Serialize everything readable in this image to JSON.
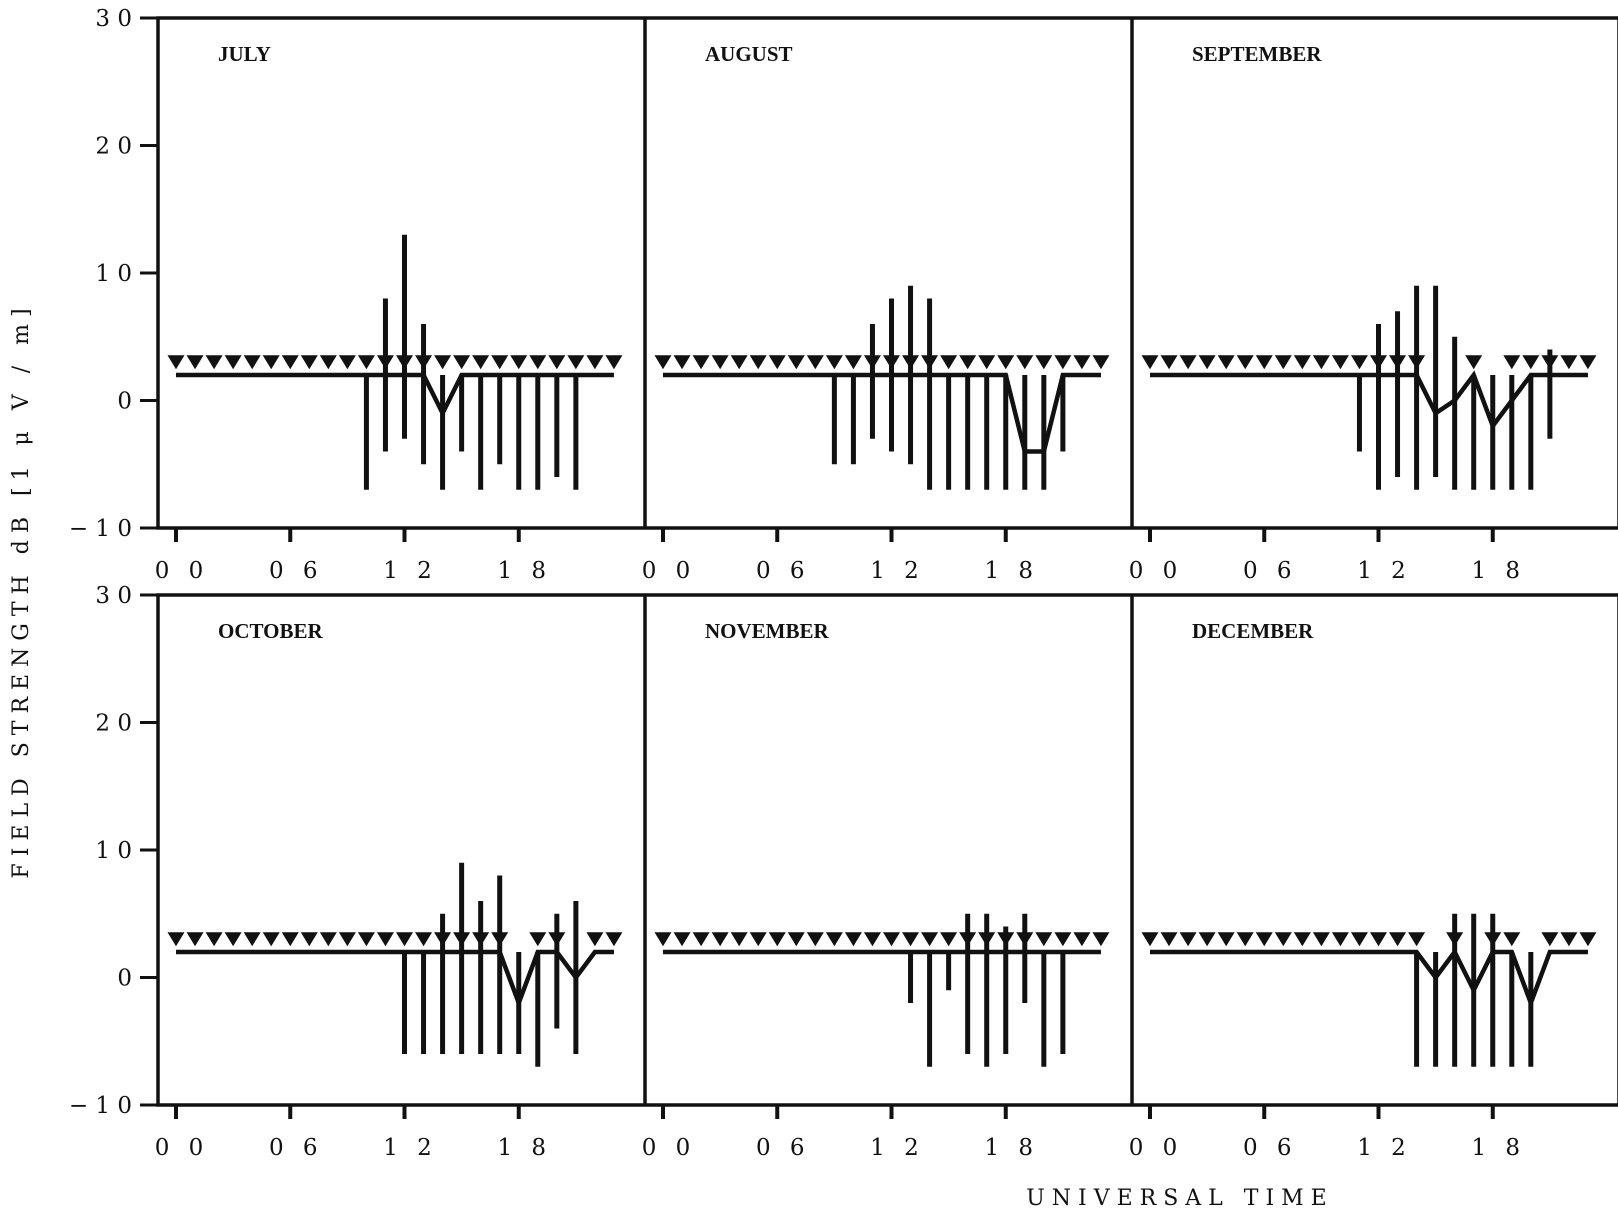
{
  "chart_data": {
    "type": "line",
    "layout": "2x3 small multiples",
    "ylabel": "FIELD STRENGTH  dB  [1 μ V / m]",
    "xlabel": "UNIVERSAL  TIME",
    "ylim": [
      -10,
      30
    ],
    "y_ticks": [
      -10,
      0,
      10,
      20,
      30
    ],
    "y_tick_labels": [
      "− 1 0",
      "0",
      "1 0",
      "2 0",
      "3 0"
    ],
    "x_range": [
      0,
      24
    ],
    "x_ticks": [
      0,
      6,
      12,
      18
    ],
    "x_tick_labels": [
      "0 0",
      "0 6",
      "1 2",
      "1 8"
    ],
    "legend": "none",
    "grid": false,
    "marker_note": "inverted triangles mark hours with no signal",
    "panels": [
      {
        "title": "JULY",
        "x": [
          0,
          1,
          2,
          3,
          4,
          5,
          6,
          7,
          8,
          9,
          10,
          11,
          12,
          13,
          14,
          15,
          16,
          17,
          18,
          19,
          20,
          21,
          22,
          23
        ],
        "median": [
          2,
          2,
          2,
          2,
          2,
          2,
          2,
          2,
          2,
          2,
          2,
          2,
          2,
          2,
          -1,
          2,
          2,
          2,
          2,
          2,
          2,
          2,
          2,
          2
        ],
        "no_signal": [
          true,
          true,
          true,
          true,
          true,
          true,
          true,
          true,
          true,
          true,
          true,
          true,
          true,
          true,
          true,
          true,
          true,
          true,
          true,
          true,
          true,
          true,
          true,
          true
        ],
        "bars": [
          {
            "x": 10,
            "low": -7,
            "high": 2
          },
          {
            "x": 11,
            "low": -4,
            "high": 8
          },
          {
            "x": 12,
            "low": -3,
            "high": 13
          },
          {
            "x": 13,
            "low": -5,
            "high": 6
          },
          {
            "x": 14,
            "low": -7,
            "high": 2
          },
          {
            "x": 15,
            "low": -4,
            "high": 2
          },
          {
            "x": 16,
            "low": -7,
            "high": 2
          },
          {
            "x": 17,
            "low": -5,
            "high": 2
          },
          {
            "x": 18,
            "low": -7,
            "high": 2
          },
          {
            "x": 19,
            "low": -7,
            "high": 2
          },
          {
            "x": 20,
            "low": -6,
            "high": 2
          },
          {
            "x": 21,
            "low": -7,
            "high": 2
          }
        ]
      },
      {
        "title": "AUGUST",
        "x": [
          0,
          1,
          2,
          3,
          4,
          5,
          6,
          7,
          8,
          9,
          10,
          11,
          12,
          13,
          14,
          15,
          16,
          17,
          18,
          19,
          20,
          21,
          22,
          23
        ],
        "median": [
          2,
          2,
          2,
          2,
          2,
          2,
          2,
          2,
          2,
          2,
          2,
          2,
          2,
          2,
          2,
          2,
          2,
          2,
          2,
          -4,
          -4,
          2,
          2,
          2
        ],
        "no_signal": [
          true,
          true,
          true,
          true,
          true,
          true,
          true,
          true,
          true,
          true,
          true,
          true,
          true,
          true,
          true,
          true,
          true,
          true,
          true,
          true,
          true,
          true,
          true,
          true
        ],
        "bars": [
          {
            "x": 9,
            "low": -5,
            "high": 2
          },
          {
            "x": 10,
            "low": -5,
            "high": 2
          },
          {
            "x": 11,
            "low": -3,
            "high": 6
          },
          {
            "x": 12,
            "low": -4,
            "high": 8
          },
          {
            "x": 13,
            "low": -5,
            "high": 9
          },
          {
            "x": 14,
            "low": -7,
            "high": 8
          },
          {
            "x": 15,
            "low": -7,
            "high": 2
          },
          {
            "x": 16,
            "low": -7,
            "high": 2
          },
          {
            "x": 17,
            "low": -7,
            "high": 2
          },
          {
            "x": 18,
            "low": -7,
            "high": 2
          },
          {
            "x": 19,
            "low": -7,
            "high": 2
          },
          {
            "x": 20,
            "low": -7,
            "high": 2
          },
          {
            "x": 21,
            "low": -4,
            "high": 2
          }
        ]
      },
      {
        "title": "SEPTEMBER",
        "x": [
          0,
          1,
          2,
          3,
          4,
          5,
          6,
          7,
          8,
          9,
          10,
          11,
          12,
          13,
          14,
          15,
          16,
          17,
          18,
          19,
          20,
          21,
          22,
          23
        ],
        "median": [
          2,
          2,
          2,
          2,
          2,
          2,
          2,
          2,
          2,
          2,
          2,
          2,
          2,
          2,
          2,
          -1,
          0,
          2,
          -2,
          0,
          2,
          2,
          2,
          2
        ],
        "no_signal": [
          true,
          true,
          true,
          true,
          true,
          true,
          true,
          true,
          true,
          true,
          true,
          true,
          true,
          true,
          true,
          false,
          false,
          true,
          false,
          true,
          true,
          true,
          true,
          true
        ],
        "bars": [
          {
            "x": 11,
            "low": -4,
            "high": 2
          },
          {
            "x": 12,
            "low": -7,
            "high": 6
          },
          {
            "x": 13,
            "low": -6,
            "high": 7
          },
          {
            "x": 14,
            "low": -7,
            "high": 9
          },
          {
            "x": 15,
            "low": -6,
            "high": 9
          },
          {
            "x": 16,
            "low": -7,
            "high": 5
          },
          {
            "x": 17,
            "low": -7,
            "high": 2
          },
          {
            "x": 18,
            "low": -7,
            "high": 2
          },
          {
            "x": 19,
            "low": -7,
            "high": 2
          },
          {
            "x": 20,
            "low": -7,
            "high": 2
          },
          {
            "x": 21,
            "low": -3,
            "high": 4
          }
        ]
      },
      {
        "title": "OCTOBER",
        "x": [
          0,
          1,
          2,
          3,
          4,
          5,
          6,
          7,
          8,
          9,
          10,
          11,
          12,
          13,
          14,
          15,
          16,
          17,
          18,
          19,
          20,
          21,
          22,
          23
        ],
        "median": [
          2,
          2,
          2,
          2,
          2,
          2,
          2,
          2,
          2,
          2,
          2,
          2,
          2,
          2,
          2,
          2,
          2,
          2,
          -2,
          2,
          2,
          0,
          2,
          2
        ],
        "no_signal": [
          true,
          true,
          true,
          true,
          true,
          true,
          true,
          true,
          true,
          true,
          true,
          true,
          true,
          true,
          true,
          true,
          true,
          true,
          false,
          true,
          true,
          false,
          true,
          true
        ],
        "bars": [
          {
            "x": 12,
            "low": -6,
            "high": 2
          },
          {
            "x": 13,
            "low": -6,
            "high": 2
          },
          {
            "x": 14,
            "low": -6,
            "high": 5
          },
          {
            "x": 15,
            "low": -6,
            "high": 9
          },
          {
            "x": 16,
            "low": -6,
            "high": 6
          },
          {
            "x": 17,
            "low": -6,
            "high": 8
          },
          {
            "x": 18,
            "low": -6,
            "high": 2
          },
          {
            "x": 19,
            "low": -7,
            "high": 2
          },
          {
            "x": 20,
            "low": -4,
            "high": 5
          },
          {
            "x": 21,
            "low": -6,
            "high": 6
          }
        ]
      },
      {
        "title": "NOVEMBER",
        "x": [
          0,
          1,
          2,
          3,
          4,
          5,
          6,
          7,
          8,
          9,
          10,
          11,
          12,
          13,
          14,
          15,
          16,
          17,
          18,
          19,
          20,
          21,
          22,
          23
        ],
        "median": [
          2,
          2,
          2,
          2,
          2,
          2,
          2,
          2,
          2,
          2,
          2,
          2,
          2,
          2,
          2,
          2,
          2,
          2,
          2,
          2,
          2,
          2,
          2,
          2
        ],
        "no_signal": [
          true,
          true,
          true,
          true,
          true,
          true,
          true,
          true,
          true,
          true,
          true,
          true,
          true,
          true,
          true,
          true,
          true,
          true,
          true,
          true,
          true,
          true,
          true,
          true
        ],
        "bars": [
          {
            "x": 13,
            "low": -2,
            "high": 2
          },
          {
            "x": 14,
            "low": -7,
            "high": 2
          },
          {
            "x": 15,
            "low": -1,
            "high": 2
          },
          {
            "x": 16,
            "low": -6,
            "high": 5
          },
          {
            "x": 17,
            "low": -7,
            "high": 5
          },
          {
            "x": 18,
            "low": -6,
            "high": 4
          },
          {
            "x": 19,
            "low": -2,
            "high": 5
          },
          {
            "x": 20,
            "low": -7,
            "high": 2
          },
          {
            "x": 21,
            "low": -6,
            "high": 2
          }
        ]
      },
      {
        "title": "DECEMBER",
        "x": [
          0,
          1,
          2,
          3,
          4,
          5,
          6,
          7,
          8,
          9,
          10,
          11,
          12,
          13,
          14,
          15,
          16,
          17,
          18,
          19,
          20,
          21,
          22,
          23
        ],
        "median": [
          2,
          2,
          2,
          2,
          2,
          2,
          2,
          2,
          2,
          2,
          2,
          2,
          2,
          2,
          2,
          0,
          2,
          -1,
          2,
          2,
          -2,
          2,
          2,
          2
        ],
        "no_signal": [
          true,
          true,
          true,
          true,
          true,
          true,
          true,
          true,
          true,
          true,
          true,
          true,
          true,
          true,
          true,
          false,
          true,
          false,
          true,
          true,
          false,
          true,
          true,
          true
        ],
        "bars": [
          {
            "x": 14,
            "low": -7,
            "high": 2
          },
          {
            "x": 15,
            "low": -7,
            "high": 2
          },
          {
            "x": 16,
            "low": -7,
            "high": 5
          },
          {
            "x": 17,
            "low": -7,
            "high": 5
          },
          {
            "x": 18,
            "low": -7,
            "high": 5
          },
          {
            "x": 19,
            "low": -7,
            "high": 2
          },
          {
            "x": 20,
            "low": -7,
            "high": 2
          }
        ]
      }
    ]
  }
}
